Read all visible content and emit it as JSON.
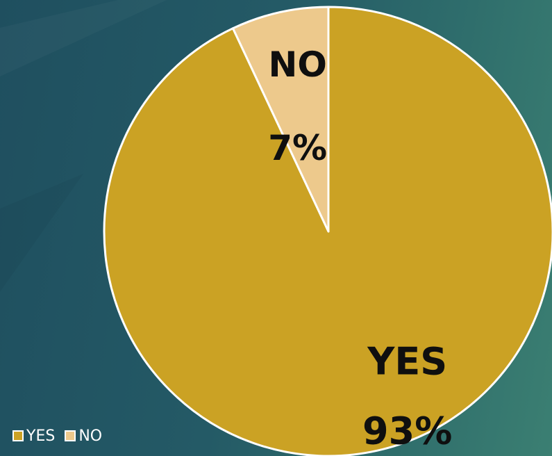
{
  "chart_data": {
    "type": "pie",
    "categories": [
      "YES",
      "NO"
    ],
    "values": [
      93,
      7
    ],
    "value_labels": [
      "93%",
      "7%"
    ],
    "colors": [
      "#cba224",
      "#edc98c"
    ],
    "slice_border_color": "#ffffff",
    "legend_position": "bottom-left",
    "title": ""
  },
  "legend": {
    "items": [
      {
        "label": "YES",
        "color": "#cba224"
      },
      {
        "label": "NO",
        "color": "#edc98c"
      }
    ]
  }
}
